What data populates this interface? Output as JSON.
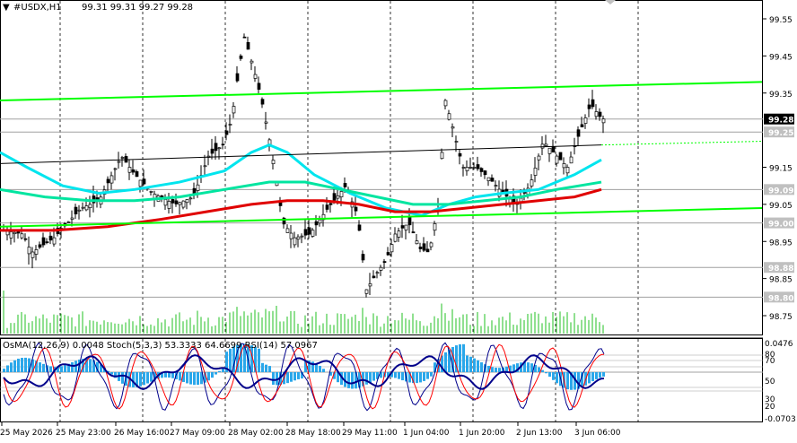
{
  "main_chart": {
    "symbol_arrow": "▼",
    "symbol": "#USDX,H1",
    "ohlc": "99.31 99.31 99.27 99.28",
    "price_labels": [
      "99.55",
      "99.45",
      "99.35",
      "99.15",
      "99.05",
      "98.95",
      "98.85",
      "98.75"
    ],
    "highlight_labels": [
      {
        "text": "99.28",
        "price": 99.28,
        "bg": "#000000",
        "fg": "#ffffff"
      },
      {
        "text": "99.25",
        "price": 99.245,
        "bg": "#c0c0c0",
        "fg": "#ffffff"
      },
      {
        "text": "99.09",
        "price": 99.09,
        "bg": "#c0c0c0",
        "fg": "#ffffff"
      },
      {
        "text": "99.00",
        "price": 99.0,
        "bg": "#c0c0c0",
        "fg": "#ffffff"
      },
      {
        "text": "98.88",
        "price": 98.88,
        "bg": "#c0c0c0",
        "fg": "#ffffff"
      },
      {
        "text": "98.80",
        "price": 98.8,
        "bg": "#c0c0c0",
        "fg": "#ffffff"
      }
    ]
  },
  "indicator": {
    "title": "OsMA(12,26,9) 0.0048  Stoch(5,3,3) 53.3333 64.6699  RSI(14) 57.0967",
    "right_labels": [
      "0.0476",
      "80",
      "70",
      "50",
      "30",
      "20",
      "-0.0703"
    ]
  },
  "time_labels": [
    "25 May 2026",
    "25 May 23:00",
    "26 May 16:00",
    "27 May 09:00",
    "28 May 02:00",
    "28 May 18:00",
    "29 May 11:00",
    "1 Jun 04:00",
    "1 Jun 20:00",
    "2 Jun 13:00",
    "3 Jun 06:00"
  ],
  "colors": {
    "channel": "#00ff00",
    "ema_cyan": "#00e5ee",
    "ema_teal": "#00e5a0",
    "ema_red": "#e00000",
    "candles": "#000000",
    "volume": "#22c222",
    "osma": "#2aa7ea",
    "stoch_main": "#00008b",
    "stoch_signal": "#ff0000",
    "rsi": "#000000"
  }
}
